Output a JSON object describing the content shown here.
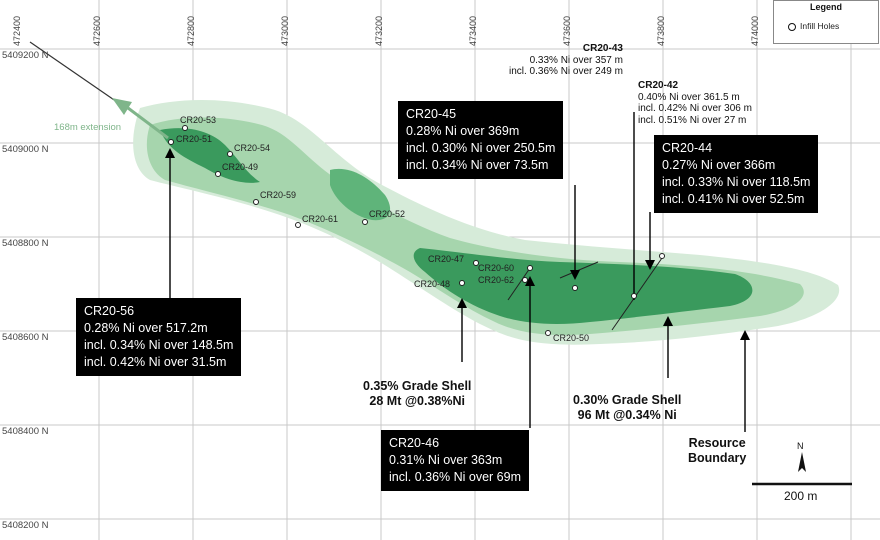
{
  "x_ticks": [
    "472400",
    "472600",
    "472800",
    "473000",
    "473200",
    "473400",
    "473600",
    "473800",
    "474000"
  ],
  "y_ticks": [
    "5409200 N",
    "5409000 N",
    "5408800 N",
    "5408600 N",
    "5408400 N",
    "5408200 N"
  ],
  "legend": {
    "title": "Legend",
    "item": "Infill Holes"
  },
  "extension_label": "168m extension",
  "drill_holes": [
    "CR20-53",
    "CR20-51",
    "CR20-54",
    "CR20-49",
    "CR20-59",
    "CR20-61",
    "CR20-52",
    "CR20-47",
    "CR20-60",
    "CR20-62",
    "CR20-48",
    "CR20-50"
  ],
  "callouts": {
    "cr20_56": {
      "title": "CR20-56",
      "lines": [
        "0.28% Ni over 517.2m",
        "incl. 0.34% Ni over 148.5m",
        "incl. 0.42% Ni over 31.5m"
      ]
    },
    "cr20_45": {
      "title": "CR20-45",
      "lines": [
        "0.28% Ni over 369m",
        "incl. 0.30% Ni over 250.5m",
        "incl. 0.34% Ni over 73.5m"
      ]
    },
    "cr20_44": {
      "title": "CR20-44",
      "lines": [
        "0.27% Ni over 366m",
        "incl. 0.33% Ni over 118.5m",
        "incl. 0.41% Ni over 52.5m"
      ]
    },
    "cr20_46": {
      "title": "CR20-46",
      "lines": [
        "0.31% Ni over 363m",
        "incl. 0.36% Ni over 69m"
      ]
    }
  },
  "annotations": {
    "cr20_43": {
      "title": "CR20-43",
      "lines": [
        "0.33% Ni over 357 m",
        "incl. 0.36% Ni over 249 m"
      ]
    },
    "cr20_42": {
      "title": "CR20-42",
      "lines": [
        "0.40% Ni over 361.5 m",
        "incl. 0.42% Ni over 306 m",
        "incl. 0.51% Ni over 27 m"
      ]
    }
  },
  "grade_shells": {
    "shell_035": {
      "line1": "0.35% Grade Shell",
      "line2": "28 Mt @0.38%Ni"
    },
    "shell_030": {
      "line1": "0.30% Grade Shell",
      "line2": "96 Mt @0.34% Ni"
    }
  },
  "resource_boundary": {
    "line1": "Resource",
    "line2": "Boundary"
  },
  "scale_bar": "200 m",
  "north_label": "N",
  "colors": {
    "outer_zone": "#d6ebd9",
    "mid_zone": "#9fd0a6",
    "core_zone": "#37975a",
    "callout_bg": "#000000"
  }
}
